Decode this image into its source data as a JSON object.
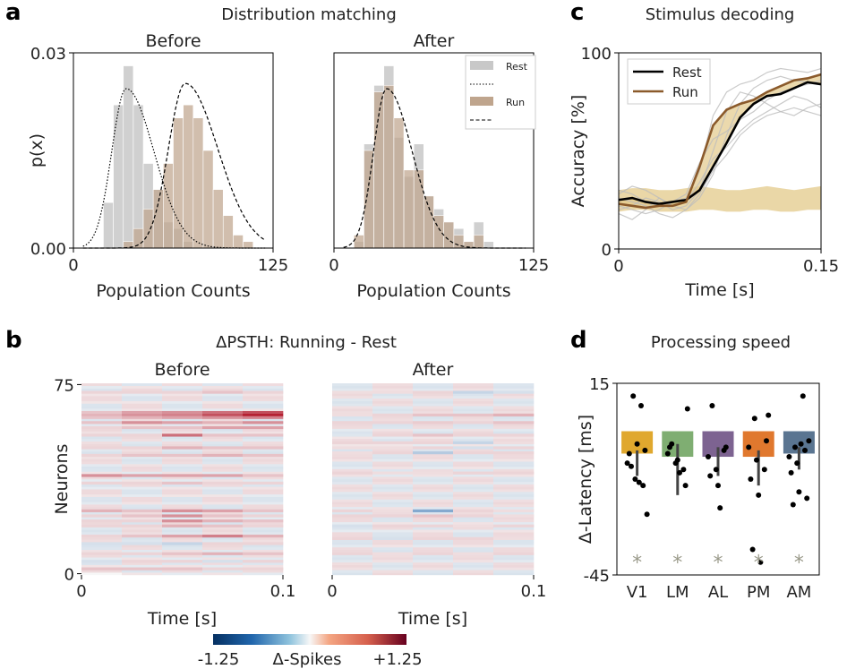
{
  "panels": {
    "a": "a",
    "b": "b",
    "c": "c",
    "d": "d"
  },
  "colors": {
    "rest": "#c8c8c8",
    "run": "#bfa58d",
    "overlap": "#a08a78",
    "rest_line": "#000000",
    "run_line": "#8b5a2b",
    "shade": "#e3c98a",
    "heat_neg": "#2166ac",
    "heat_pos": "#b2182b",
    "bar_colors": [
      "#e0a82e",
      "#7fae72",
      "#7d6391",
      "#e0782e",
      "#5a7591"
    ],
    "star": "#9a9a8a"
  },
  "chart_data": [
    {
      "id": "a-before",
      "type": "bar",
      "suptitle": "Distribution matching",
      "title": "Before",
      "xlabel": "Population Counts",
      "ylabel": "p(x)",
      "xlim": [
        0,
        125
      ],
      "ylim": [
        0,
        0.03
      ],
      "xticks": [
        "0",
        "125"
      ],
      "yticks": [
        "0.00",
        "0.03"
      ],
      "bin_edges": [
        0,
        6.25,
        12.5,
        18.75,
        25,
        31.25,
        37.5,
        43.75,
        50,
        56.25,
        62.5,
        68.75,
        75,
        81.25,
        87.5,
        93.75,
        100,
        106.25,
        112.5,
        118.75,
        125
      ],
      "series": [
        {
          "name": "Rest",
          "values": [
            0,
            0,
            0,
            0.007,
            0.022,
            0.028,
            0.022,
            0.013,
            0.009,
            0.004,
            0.003,
            0.001,
            0,
            0,
            0,
            0,
            0,
            0,
            0,
            0
          ]
        },
        {
          "name": "Run",
          "values": [
            0,
            0,
            0,
            0,
            0,
            0.001,
            0.003,
            0.006,
            0.009,
            0.013,
            0.02,
            0.022,
            0.02,
            0.015,
            0.009,
            0.005,
            0.002,
            0.001,
            0,
            0
          ]
        }
      ],
      "fits": [
        {
          "name": "Rest fit",
          "mean": 33,
          "sd": 12,
          "peak": 0.0245
        },
        {
          "name": "Run fit",
          "mean": 70,
          "sd": 14,
          "peak": 0.0253
        }
      ]
    },
    {
      "id": "a-after",
      "type": "bar",
      "title": "After",
      "xlabel": "Population Counts",
      "xlim": [
        0,
        125
      ],
      "ylim": [
        0,
        0.03
      ],
      "xticks": [
        "0",
        "125"
      ],
      "legend": [
        "Rest",
        "Run"
      ],
      "bin_edges": [
        0,
        6.25,
        12.5,
        18.75,
        25,
        31.25,
        37.5,
        43.75,
        50,
        56.25,
        62.5,
        68.75,
        75,
        81.25,
        87.5,
        93.75,
        100,
        106.25,
        112.5,
        118.75,
        125
      ],
      "series": [
        {
          "name": "Rest",
          "values": [
            0,
            0,
            0.001,
            0.016,
            0.025,
            0.028,
            0.017,
            0.011,
            0.016,
            0.008,
            0.006,
            0.004,
            0.003,
            0.001,
            0.004,
            0.001,
            0,
            0,
            0,
            0
          ]
        },
        {
          "name": "Run",
          "values": [
            0,
            0,
            0.002,
            0.015,
            0.024,
            0.025,
            0.02,
            0.012,
            0.012,
            0.008,
            0.005,
            0.004,
            0.002,
            0.001,
            0.002,
            0,
            0,
            0,
            0,
            0
          ]
        }
      ],
      "fits": [
        {
          "name": "Rest fit",
          "mean": 33,
          "sd": 11,
          "peak": 0.0245
        }
      ]
    },
    {
      "id": "b",
      "type": "heatmap",
      "suptitle": "ΔPSTH: Running - Rest",
      "ylabel": "Neurons",
      "xlabel": "Time [s]",
      "xticks": [
        "0",
        "0.1"
      ],
      "yticks": [
        "0",
        "75"
      ],
      "colorbar": {
        "label": "Δ-Spikes",
        "min_label": "-1.25",
        "max_label": "+1.25",
        "vmin": -1.25,
        "vmax": 1.25
      },
      "n_neurons": 76,
      "n_time_bins": 5,
      "panels": [
        {
          "title": "Before",
          "rows": [
            [
              63,
              [
                0.3,
                0.5,
                0.6,
                0.9,
                1.2
              ]
            ],
            [
              64,
              [
                0.2,
                0.4,
                0.5,
                0.7,
                0.9
              ]
            ],
            [
              62,
              [
                0.2,
                0.3,
                0.4,
                0.5,
                0.6
              ]
            ],
            [
              60,
              [
                0.2,
                0.5,
                0.4,
                0.3,
                0.5
              ]
            ],
            [
              58,
              [
                0.1,
                0.2,
                0.2,
                0.4,
                0.4
              ]
            ],
            [
              55,
              [
                0.1,
                0.1,
                0.7,
                0.2,
                0.2
              ]
            ],
            [
              50,
              [
                0.1,
                0.1,
                0.3,
                0.2,
                0.2
              ]
            ],
            [
              47,
              [
                0.1,
                0.2,
                0.2,
                0.3,
                0.2
              ]
            ],
            [
              39,
              [
                0.5,
                0.4,
                0.4,
                0.4,
                0.2
              ]
            ],
            [
              36,
              [
                0.1,
                0.1,
                0.2,
                0.1,
                0.1
              ]
            ],
            [
              25,
              [
                0.3,
                0.2,
                0.5,
                0.4,
                0.2
              ]
            ],
            [
              23,
              [
                0.1,
                0.2,
                0.5,
                0.2,
                0.1
              ]
            ],
            [
              21,
              [
                0.1,
                0.1,
                0.5,
                0.3,
                0.2
              ]
            ],
            [
              19,
              [
                0.1,
                0.1,
                0.3,
                0.2,
                0.1
              ]
            ],
            [
              15,
              [
                0.1,
                0.2,
                0.4,
                0.6,
                0.3
              ]
            ],
            [
              12,
              [
                -0.1,
                -0.1,
                -0.2,
                0.1,
                0.1
              ]
            ],
            [
              8,
              [
                0.1,
                0.1,
                0.2,
                0.3,
                0.2
              ]
            ],
            [
              2,
              [
                0.2,
                0.2,
                0.2,
                0.1,
                0.1
              ]
            ],
            [
              5,
              [
                -0.1,
                0.1,
                0.1,
                -0.1,
                0.1
              ]
            ],
            [
              72,
              [
                0.1,
                0.1,
                0.1,
                0.2,
                0.1
              ]
            ]
          ]
        },
        {
          "title": "After",
          "rows": [
            [
              63,
              [
                0.05,
                0.1,
                0.2,
                0.2,
                0.3
              ]
            ],
            [
              60,
              [
                0.1,
                0.1,
                0.15,
                0.1,
                0.2
              ]
            ],
            [
              55,
              [
                -0.05,
                0.1,
                0.2,
                0.1,
                0.1
              ]
            ],
            [
              52,
              [
                0.1,
                0.1,
                0.1,
                -0.2,
                0.05
              ]
            ],
            [
              50,
              [
                0.05,
                0.05,
                0.1,
                -0.1,
                0.1
              ]
            ],
            [
              48,
              [
                0.05,
                0.1,
                -0.3,
                0.1,
                0.1
              ]
            ],
            [
              25,
              [
                0.1,
                0.05,
                -0.6,
                0.1,
                0.05
              ]
            ],
            [
              23,
              [
                0.1,
                0.1,
                0.2,
                0.1,
                0.05
              ]
            ],
            [
              19,
              [
                -0.1,
                0.1,
                0.1,
                0.05,
                0.1
              ]
            ],
            [
              14,
              [
                0.1,
                -0.1,
                0.1,
                0.1,
                0.05
              ]
            ],
            [
              72,
              [
                0.05,
                0.05,
                0.1,
                -0.2,
                -0.1
              ]
            ],
            [
              40,
              [
                0.1,
                0.05,
                0.05,
                0.1,
                0.1
              ]
            ],
            [
              8,
              [
                0.1,
                0.05,
                0.1,
                0.05,
                0.1
              ]
            ]
          ]
        }
      ]
    },
    {
      "id": "c",
      "type": "line",
      "title": "Stimulus decoding",
      "xlabel": "Time [s]",
      "ylabel": "Accuracy [%]",
      "xlim": [
        0,
        0.15
      ],
      "ylim": [
        0,
        100
      ],
      "xticks": [
        "0",
        "0.15"
      ],
      "yticks": [
        "0",
        "100"
      ],
      "x": [
        0,
        0.01,
        0.02,
        0.03,
        0.04,
        0.05,
        0.06,
        0.07,
        0.08,
        0.09,
        0.1,
        0.11,
        0.12,
        0.13,
        0.14,
        0.15
      ],
      "series": [
        {
          "name": "Rest",
          "values": [
            25,
            26,
            24,
            23,
            24,
            25,
            30,
            42,
            54,
            67,
            74,
            78,
            79,
            82,
            85,
            84
          ]
        },
        {
          "name": "Run",
          "values": [
            23,
            22,
            21,
            22,
            22,
            24,
            42,
            63,
            71,
            74,
            76,
            80,
            83,
            86,
            87,
            89
          ]
        }
      ],
      "chance_band": {
        "lower": [
          19,
          20,
          20,
          19,
          19,
          19,
          20,
          20,
          19,
          19,
          20,
          20,
          19,
          19,
          20,
          20
        ],
        "upper": [
          30,
          31,
          31,
          30,
          30,
          31,
          32,
          31,
          30,
          30,
          31,
          32,
          31,
          30,
          31,
          32
        ]
      },
      "gray_lines": [
        [
          30,
          28,
          24,
          22,
          24,
          28,
          44,
          56,
          60,
          66,
          70,
          76,
          80,
          82,
          84,
          86
        ],
        [
          20,
          22,
          26,
          24,
          20,
          22,
          30,
          50,
          70,
          80,
          78,
          74,
          70,
          68,
          72,
          74
        ],
        [
          28,
          32,
          30,
          26,
          22,
          20,
          26,
          38,
          58,
          74,
          82,
          86,
          88,
          86,
          85,
          84
        ],
        [
          22,
          20,
          18,
          20,
          24,
          26,
          40,
          68,
          80,
          84,
          86,
          90,
          92,
          91,
          90,
          92
        ],
        [
          18,
          15,
          20,
          26,
          22,
          24,
          34,
          46,
          52,
          60,
          66,
          70,
          74,
          78,
          76,
          72
        ],
        [
          26,
          24,
          22,
          18,
          16,
          20,
          28,
          40,
          48,
          58,
          64,
          68,
          70,
          72,
          70,
          68
        ]
      ]
    },
    {
      "id": "d",
      "type": "bar",
      "title": "Processing speed",
      "ylabel": "Δ-Latency [ms]",
      "ylim": [
        -45,
        15
      ],
      "yticks": [
        "15",
        "-45"
      ],
      "categories": [
        "V1",
        "LM",
        "AL",
        "PM",
        "AM"
      ],
      "values": [
        -7,
        -8,
        -8,
        -8,
        -7
      ],
      "errors": [
        [
          -14,
          -6
        ],
        [
          -20,
          -4
        ],
        [
          -14,
          -5
        ],
        [
          -17,
          -6
        ],
        [
          -12,
          -5
        ]
      ],
      "points": [
        [
          -10,
          -15,
          -17,
          -7,
          -4,
          -6,
          -11,
          -16,
          -26,
          11,
          8
        ],
        [
          -7,
          -10,
          -12,
          -5,
          -9,
          -17,
          -4,
          -13,
          7
        ],
        [
          -8,
          -12,
          -6,
          -14,
          -17,
          -5,
          8,
          -24
        ],
        [
          -5,
          -9,
          -12,
          -15,
          -20,
          -3,
          -37,
          -41,
          5,
          4
        ],
        [
          -8,
          -10,
          -6,
          -13,
          -19,
          -21,
          -23,
          -4,
          -3,
          -5,
          11
        ]
      ],
      "significance": [
        "*",
        "*",
        "*",
        "*",
        "*"
      ]
    }
  ]
}
